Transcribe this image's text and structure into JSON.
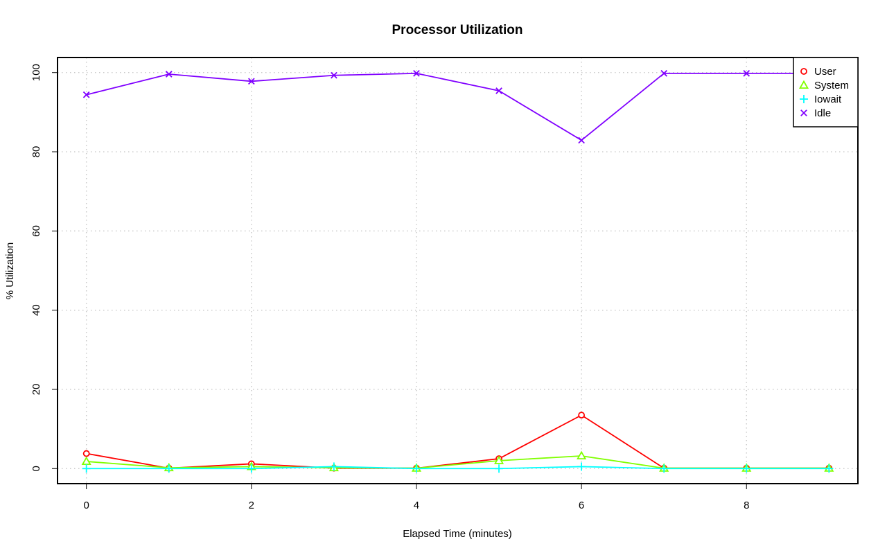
{
  "chart_data": {
    "type": "line",
    "title": "Processor Utilization",
    "xlabel": "Elapsed Time (minutes)",
    "ylabel": "% Utilization",
    "xlim": [
      -0.35,
      9.35
    ],
    "ylim": [
      -3.8,
      103.8
    ],
    "x_ticks": [
      0,
      2,
      4,
      6,
      8
    ],
    "y_ticks": [
      0,
      20,
      40,
      60,
      80,
      100
    ],
    "grid": true,
    "legend_position": "top-right",
    "x": [
      0,
      1,
      2,
      3,
      4,
      5,
      6,
      7,
      8,
      9
    ],
    "series": [
      {
        "name": "User",
        "color": "#ff0000",
        "marker": "circle",
        "values": [
          3.8,
          0.1,
          1.2,
          0.1,
          0.1,
          2.5,
          13.5,
          0.1,
          0.1,
          0.1
        ]
      },
      {
        "name": "System",
        "color": "#80ff00",
        "marker": "triangle",
        "values": [
          1.8,
          0.2,
          0.5,
          0.2,
          0.1,
          2.0,
          3.2,
          0.1,
          0.1,
          0.1
        ]
      },
      {
        "name": "Iowait",
        "color": "#00ffff",
        "marker": "plus",
        "values": [
          0.0,
          0.0,
          0.0,
          0.5,
          0.0,
          0.0,
          0.5,
          0.0,
          0.0,
          0.0
        ]
      },
      {
        "name": "Idle",
        "color": "#8000ff",
        "marker": "cross",
        "values": [
          94.4,
          99.6,
          97.8,
          99.3,
          99.8,
          95.4,
          82.9,
          99.8,
          99.8,
          99.8
        ]
      }
    ]
  }
}
